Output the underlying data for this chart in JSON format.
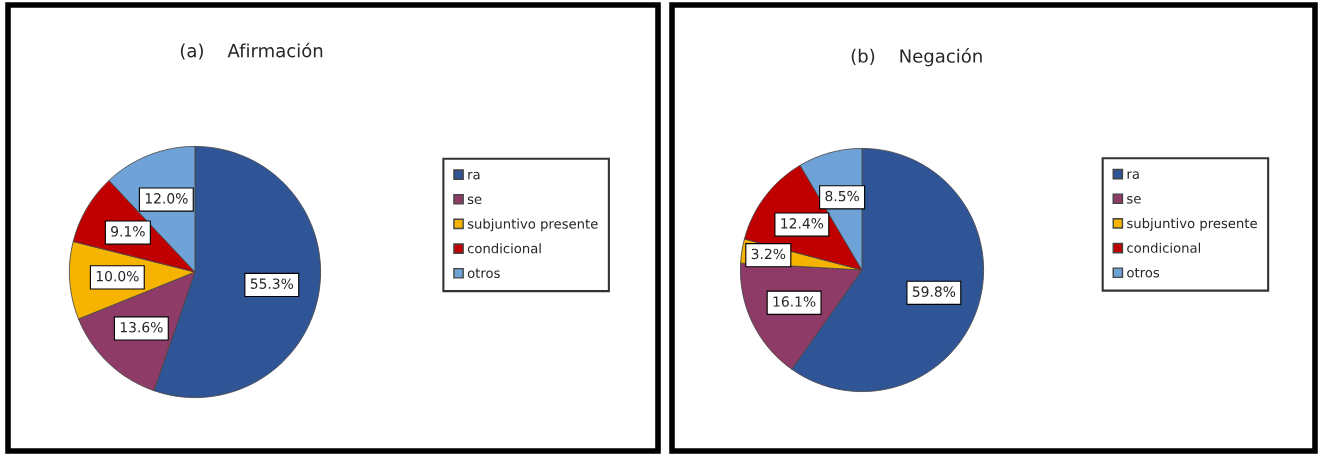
{
  "chart_data": [
    {
      "type": "pie",
      "title": "(a)    Afirmación",
      "categories": [
        "ra",
        "se",
        "subjuntivo presente",
        "condicional",
        "otros"
      ],
      "values": [
        55.3,
        13.6,
        10.0,
        9.1,
        12.0
      ],
      "colors": [
        "#2f5597",
        "#8e3b67",
        "#f6b400",
        "#c00000",
        "#6fa3d8"
      ],
      "value_labels": [
        "55.3%",
        "13.6%",
        "10.0%",
        "9.1%",
        "12.0%"
      ],
      "legend": "right"
    },
    {
      "type": "pie",
      "title": "(b)    Negación",
      "categories": [
        "ra",
        "se",
        "subjuntivo presente",
        "condicional",
        "otros"
      ],
      "values": [
        59.8,
        16.1,
        3.2,
        12.4,
        8.5
      ],
      "colors": [
        "#2f5597",
        "#8e3b67",
        "#f6b400",
        "#c00000",
        "#6fa3d8"
      ],
      "value_labels": [
        "59.8%",
        "16.1%",
        "3.2%",
        "12.4%",
        "8.5%"
      ],
      "legend": "right"
    }
  ]
}
